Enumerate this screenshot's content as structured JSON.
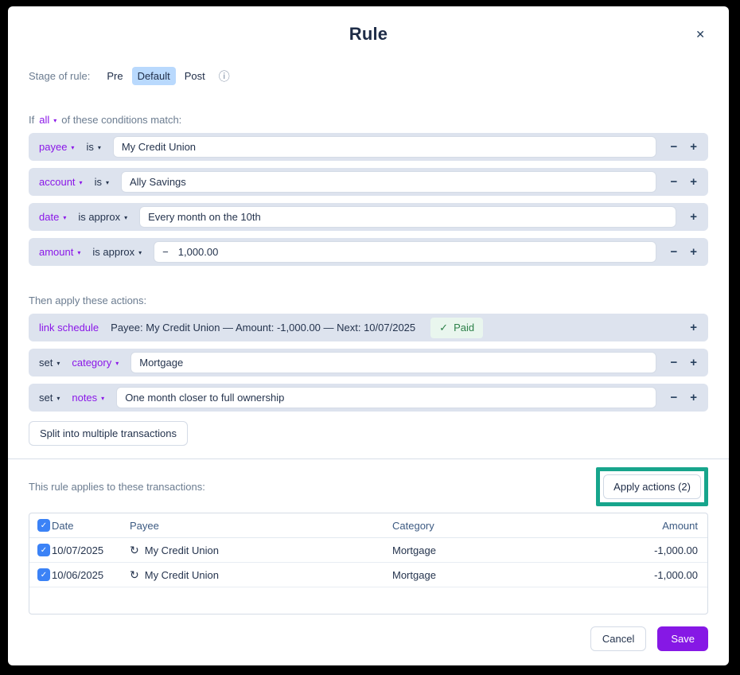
{
  "modal": {
    "title": "Rule"
  },
  "ui": {
    "close_icon": "✕",
    "info_icon": "ⓘ",
    "caret": "▾",
    "minus": "−",
    "plus": "+",
    "check": "✓",
    "recurring_icon": "↻"
  },
  "stage": {
    "label": "Stage of rule:",
    "options": [
      "Pre",
      "Default",
      "Post"
    ],
    "selected": "Default"
  },
  "conditions": {
    "prefix": "If",
    "operator": "all",
    "suffix": "of these conditions match:",
    "rows": [
      {
        "field": "payee",
        "op": "is",
        "value": "My Credit Union"
      },
      {
        "field": "account",
        "op": "is",
        "value": "Ally Savings"
      },
      {
        "field": "date",
        "op": "is approx",
        "value": "Every month on the 10th"
      },
      {
        "field": "amount",
        "op": "is approx",
        "value_prefix": "−",
        "value": "1,000.00"
      }
    ]
  },
  "actions": {
    "heading": "Then apply these actions:",
    "link_schedule": {
      "label": "link schedule",
      "description": "Payee: My Credit Union — Amount: -1,000.00 — Next: 10/07/2025",
      "badge_icon": "✓",
      "badge": "Paid"
    },
    "rows": [
      {
        "verb": "set",
        "field": "category",
        "value": "Mortgage"
      },
      {
        "verb": "set",
        "field": "notes",
        "value": "One month closer to full ownership"
      }
    ],
    "split_button": "Split into multiple transactions"
  },
  "transactions": {
    "heading": "This rule applies to these transactions:",
    "apply_button": "Apply actions (2)",
    "table": {
      "headers": [
        "Date",
        "Payee",
        "Category",
        "Amount"
      ],
      "rows": [
        {
          "date": "10/07/2025",
          "payee": "My Credit Union",
          "category": "Mortgage",
          "amount": "-1,000.00"
        },
        {
          "date": "10/06/2025",
          "payee": "My Credit Union",
          "category": "Mortgage",
          "amount": "-1,000.00"
        }
      ]
    }
  },
  "footer": {
    "cancel": "Cancel",
    "save": "Save"
  },
  "colors": {
    "accent_purple": "#8a17e8",
    "save_purple": "#8618e5",
    "highlight_teal": "#17a58c",
    "stage_selected_bg": "#b9d9fd",
    "row_bg": "#dde3ee",
    "checkbox_blue": "#3b82f6",
    "paid_green": "#2d8049",
    "paid_bg": "#e9f6ee"
  }
}
